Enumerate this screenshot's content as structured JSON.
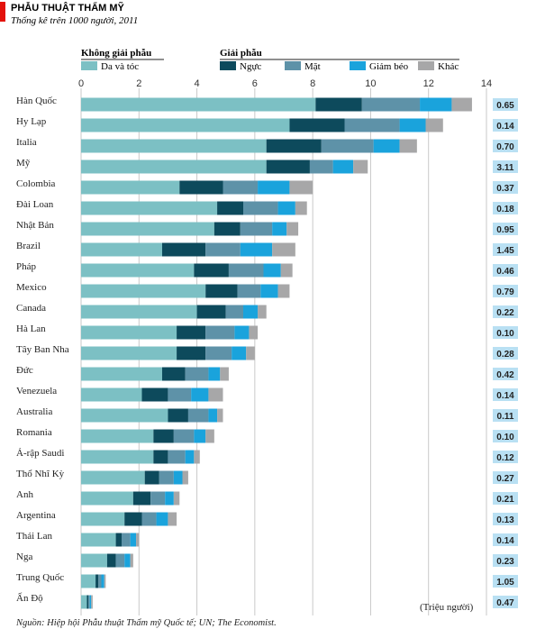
{
  "chart_data": {
    "type": "bar",
    "stacked": true,
    "orientation": "horizontal",
    "title": "PHẪU THUẬT THẨM MỸ",
    "subtitle": "Thống kê trên 1000 người, 2011",
    "group_labels": {
      "non_surgical": "Không giải phẫu",
      "surgical": "Giải phẫu"
    },
    "xlim": [
      0,
      14
    ],
    "xticks": [
      0,
      2,
      4,
      6,
      8,
      10,
      12,
      14
    ],
    "grid": true,
    "legend_position": "top",
    "categories": [
      "Hàn Quốc",
      "Hy Lạp",
      "Italia",
      "Mỹ",
      "Colombia",
      "Đài Loan",
      "Nhật Bản",
      "Brazil",
      "Pháp",
      "Mexico",
      "Canada",
      "Hà Lan",
      "Tây Ban Nha",
      "Đức",
      "Venezuela",
      "Australia",
      "Romania",
      "Ả-rập Saudi",
      "Thổ Nhĩ Kỳ",
      "Anh",
      "Argentina",
      "Thái Lan",
      "Nga",
      "Trung Quốc",
      "Ấn Độ"
    ],
    "series": [
      {
        "name": "Da và tóc",
        "color": "#7cc0c4",
        "values": [
          8.1,
          7.2,
          6.4,
          6.4,
          3.4,
          4.7,
          4.6,
          2.8,
          3.9,
          4.3,
          4.0,
          3.3,
          3.3,
          2.8,
          2.1,
          3.0,
          2.5,
          2.5,
          2.2,
          1.8,
          1.5,
          1.2,
          0.9,
          0.5,
          0.2
        ]
      },
      {
        "name": "Ngực",
        "color": "#0d4a5c",
        "values": [
          1.6,
          1.9,
          1.9,
          1.5,
          1.5,
          0.9,
          0.9,
          1.5,
          1.2,
          1.1,
          1.0,
          1.0,
          1.0,
          0.8,
          0.9,
          0.7,
          0.7,
          0.5,
          0.5,
          0.6,
          0.6,
          0.2,
          0.3,
          0.1,
          0.05
        ]
      },
      {
        "name": "Mặt",
        "color": "#5e92a8",
        "values": [
          2.0,
          1.9,
          1.8,
          0.8,
          1.2,
          1.2,
          1.1,
          1.2,
          1.2,
          0.8,
          0.6,
          1.0,
          0.9,
          0.8,
          0.8,
          0.7,
          0.7,
          0.6,
          0.5,
          0.5,
          0.5,
          0.3,
          0.3,
          0.1,
          0.05
        ]
      },
      {
        "name": "Giảm béo",
        "color": "#1aa3dc",
        "values": [
          1.1,
          0.9,
          0.9,
          0.7,
          1.1,
          0.6,
          0.5,
          1.1,
          0.6,
          0.6,
          0.5,
          0.5,
          0.5,
          0.4,
          0.6,
          0.3,
          0.4,
          0.3,
          0.3,
          0.3,
          0.4,
          0.2,
          0.2,
          0.1,
          0.05
        ]
      },
      {
        "name": "Khác",
        "color": "#a7a7a8",
        "values": [
          0.7,
          0.6,
          0.6,
          0.5,
          0.8,
          0.4,
          0.4,
          0.8,
          0.4,
          0.4,
          0.3,
          0.3,
          0.3,
          0.3,
          0.5,
          0.2,
          0.3,
          0.2,
          0.2,
          0.2,
          0.3,
          0.1,
          0.1,
          0.05,
          0.05
        ]
      }
    ],
    "population_label": "(Triệu người)",
    "population": [
      "0.65",
      "0.14",
      "0.70",
      "3.11",
      "0.37",
      "0.18",
      "0.95",
      "1.45",
      "0.46",
      "0.79",
      "0.22",
      "0.10",
      "0.28",
      "0.42",
      "0.14",
      "0.11",
      "0.10",
      "0.12",
      "0.27",
      "0.21",
      "0.13",
      "0.14",
      "0.23",
      "1.05",
      "0.47"
    ],
    "source": "Nguồn: Hiệp hội Phẫu thuật Thẩm mỹ Quốc tế; UN; The Economist.",
    "accent_color": "#e3120b",
    "value_box_color": "#b9e0f3"
  }
}
